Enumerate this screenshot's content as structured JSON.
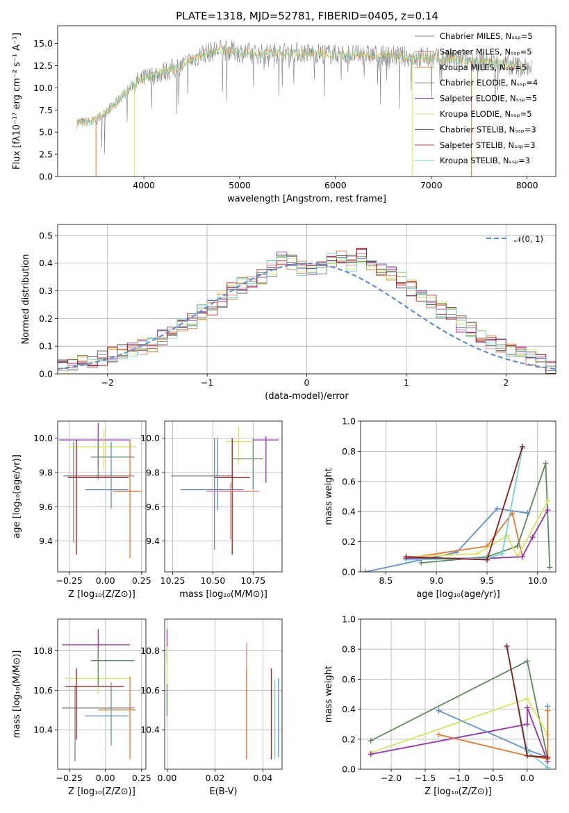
{
  "colors": {
    "Chabrier MILES": "#808080",
    "Salpeter MILES": "#f07c7c",
    "Kroupa MILES": "#e8772a",
    "Chabrier ELODIE": "#5a8a5a",
    "Salpeter ELODIE": "#9b30b8",
    "Kroupa ELODIE": "#d4e857",
    "Chabrier STELIB": "#555555",
    "Salpeter STELIB": "#b01818",
    "Kroupa STELIB": "#6fd4d4",
    "blue": "#5b8fd6",
    "darkred": "#8b1a1a"
  },
  "chart_data": [
    {
      "id": "spectrum",
      "type": "line",
      "title": "PLATE=1318, MJD=52781, FIBERID=0405, z=0.14",
      "xlabel": "wavelength [Angstrom, rest frame]",
      "ylabel": "Flux [fλ10⁻¹⁷ erg cm⁻² s⁻¹ A⁻¹]",
      "xlim": [
        3100,
        8300
      ],
      "ylim": [
        0,
        17
      ],
      "xticks": [
        "4000",
        "5000",
        "6000",
        "7000",
        "8000"
      ],
      "yticks": [
        "0.0",
        "2.5",
        "5.0",
        "7.5",
        "10.0",
        "12.5",
        "15.0"
      ],
      "legend": [
        "Chabrier MILES, Nₛₛₚ=5",
        "Salpeter MILES, Nₛₛₚ=5",
        "Kroupa MILES, Nₛₛₚ=5",
        "Chabrier ELODIE, Nₛₛₚ=4",
        "Salpeter ELODIE, Nₛₛₚ=5",
        "Kroupa ELODIE, Nₛₛₚ=5",
        "Chabrier STELIB, Nₛₛₚ=3",
        "Salpeter STELIB, Nₛₛₚ=3",
        "Kroupa STELIB, Nₛₛₚ=3"
      ],
      "legend_colors": [
        "#808080",
        "#f07c7c",
        "#e8772a",
        "#5a8a5a",
        "#9b30b8",
        "#d4e857",
        "#555555",
        "#b01818",
        "#6fd4d4"
      ],
      "legend_position": "right",
      "continuum": [
        [
          3300,
          6.0
        ],
        [
          3500,
          6.3
        ],
        [
          3700,
          8.2
        ],
        [
          3900,
          10.5
        ],
        [
          4000,
          11.0
        ],
        [
          4200,
          11.8
        ],
        [
          4400,
          12.5
        ],
        [
          4600,
          13.8
        ],
        [
          4800,
          14.3
        ],
        [
          5000,
          14.0
        ],
        [
          5200,
          13.8
        ],
        [
          5500,
          14.0
        ],
        [
          5800,
          13.9
        ],
        [
          6000,
          13.8
        ],
        [
          6300,
          13.7
        ],
        [
          6600,
          13.6
        ],
        [
          6900,
          13.4
        ],
        [
          7200,
          13.2
        ],
        [
          7500,
          13.0
        ],
        [
          7800,
          12.6
        ],
        [
          8050,
          12.2
        ]
      ]
    },
    {
      "id": "residuals",
      "type": "bar",
      "xlabel": "(data-model)/error",
      "ylabel": "Normed distribution",
      "xlim": [
        -2.5,
        2.5
      ],
      "ylim": [
        0,
        0.54
      ],
      "xticks": [
        "−2",
        "−1",
        "0",
        "1",
        "2"
      ],
      "yticks": [
        "0.0",
        "0.1",
        "0.2",
        "0.3",
        "0.4",
        "0.5"
      ],
      "legend": [
        "𝒩(0, 1)"
      ],
      "bin_edges_start": -2.5,
      "bin_width": 0.1,
      "values": [
        0.02,
        0.03,
        0.04,
        0.05,
        0.06,
        0.07,
        0.08,
        0.09,
        0.1,
        0.11,
        0.13,
        0.15,
        0.17,
        0.19,
        0.22,
        0.24,
        0.27,
        0.3,
        0.32,
        0.34,
        0.35,
        0.38,
        0.42,
        0.4,
        0.38,
        0.37,
        0.39,
        0.41,
        0.42,
        0.4,
        0.43,
        0.4,
        0.38,
        0.36,
        0.34,
        0.31,
        0.28,
        0.26,
        0.23,
        0.21,
        0.18,
        0.16,
        0.14,
        0.12,
        0.1,
        0.09,
        0.07,
        0.06,
        0.05,
        0.03
      ]
    },
    {
      "id": "age-Z",
      "type": "scatter",
      "xlabel": "Z [log₁₀(Z/Z⊙)]",
      "ylabel": "age  [log₁₀(age/yr)]",
      "xlim": [
        -0.33,
        0.28
      ],
      "ylim": [
        9.22,
        10.1
      ],
      "xticks": [
        "−0.25",
        "0.00",
        "0.25"
      ],
      "yticks": [
        "9.4",
        "9.6",
        "9.8",
        "10.0"
      ],
      "points": [
        {
          "x": -0.05,
          "y": 9.99,
          "xerr": [
            0.27,
            0.22
          ],
          "yerr": [
            0.15,
            0.1
          ],
          "c": "#9b30b8"
        },
        {
          "x": -0.01,
          "y": 9.95,
          "xerr": [
            0.25,
            0.22
          ],
          "yerr": [
            0.13,
            0.1
          ],
          "c": "#d4e857"
        },
        {
          "x": -0.22,
          "y": 9.78,
          "xerr": [
            0.07,
            0.42
          ],
          "yerr": [
            0.39,
            0.2
          ],
          "c": "#808080"
        },
        {
          "x": -0.2,
          "y": 9.77,
          "xerr": [
            0.06,
            0.36
          ],
          "yerr": [
            0.45,
            0.22
          ],
          "c": "#b01818"
        },
        {
          "x": 0.04,
          "y": 9.7,
          "xerr": [
            0.18,
            0.12
          ],
          "yerr": [
            0.11,
            0.28
          ],
          "c": "#5b8fd6"
        },
        {
          "x": 0.17,
          "y": 9.69,
          "xerr": [
            0.12,
            0.08
          ],
          "yerr": [
            0.39,
            0.3
          ],
          "c": "#e8772a"
        },
        {
          "x": -0.05,
          "y": 9.89,
          "xerr": [
            0.05,
            0.25
          ],
          "yerr": [
            0.13,
            0.12
          ],
          "c": "#5a8a5a"
        }
      ]
    },
    {
      "id": "age-mass",
      "type": "scatter",
      "xlabel": "mass [log₁₀(M/M⊙)]",
      "ylabel": "",
      "xlim": [
        10.2,
        10.93
      ],
      "ylim": [
        9.22,
        10.1
      ],
      "xticks": [
        "10.25",
        "10.50",
        "10.75"
      ],
      "yticks": [
        "9.4",
        "9.6",
        "9.8",
        "10.0"
      ],
      "points": [
        {
          "x": 10.83,
          "y": 9.99,
          "xerr": [
            0.08,
            0.08
          ],
          "yerr": [
            0.25,
            0.02
          ],
          "c": "#9b30b8"
        },
        {
          "x": 10.66,
          "y": 9.98,
          "xerr": [
            0.08,
            0.08
          ],
          "yerr": [
            0.13,
            0.09
          ],
          "c": "#d4e857"
        },
        {
          "x": 10.51,
          "y": 9.78,
          "xerr": [
            0.27,
            0.11
          ],
          "yerr": [
            0.43,
            0.22
          ],
          "c": "#808080"
        },
        {
          "x": 10.62,
          "y": 9.77,
          "xerr": [
            0.11,
            0.11
          ],
          "yerr": [
            0.45,
            0.23
          ],
          "c": "#b01818"
        },
        {
          "x": 10.53,
          "y": 9.7,
          "xerr": [
            0.23,
            0.16
          ],
          "yerr": [
            0.12,
            0.3
          ],
          "c": "#5b8fd6"
        },
        {
          "x": 10.61,
          "y": 9.69,
          "xerr": [
            0.15,
            0.18
          ],
          "yerr": [
            0.28,
            0.05
          ],
          "c": "#f07c7c"
        },
        {
          "x": 10.75,
          "y": 9.88,
          "xerr": [
            0.13,
            0.06
          ],
          "yerr": [
            0.18,
            0.12
          ],
          "c": "#5a8a5a"
        }
      ]
    },
    {
      "id": "weight-age",
      "type": "line",
      "xlabel": "age  [log₁₀(age/yr)]",
      "ylabel": "mass weight",
      "xlim": [
        8.25,
        10.18
      ],
      "ylim": [
        0,
        1
      ],
      "xticks": [
        "8.5",
        "9.0",
        "9.5",
        "10.0"
      ],
      "yticks": [
        "0.0",
        "0.2",
        "0.4",
        "0.6",
        "0.8",
        "1.0"
      ],
      "series": [
        {
          "c": "#5b8fd6",
          "pts": [
            [
              8.3,
              0.0
            ],
            [
              9.2,
              0.13
            ],
            [
              9.6,
              0.42
            ],
            [
              9.9,
              0.39
            ]
          ]
        },
        {
          "c": "#e8772a",
          "pts": [
            [
              8.7,
              0.09
            ],
            [
              9.5,
              0.17
            ],
            [
              9.75,
              0.39
            ],
            [
              9.85,
              0.1
            ]
          ]
        },
        {
          "c": "#5a8a5a",
          "pts": [
            [
              8.85,
              0.06
            ],
            [
              9.5,
              0.1
            ],
            [
              9.8,
              0.17
            ],
            [
              10.08,
              0.72
            ],
            [
              10.12,
              0.03
            ]
          ]
        },
        {
          "c": "#d4e857",
          "pts": [
            [
              8.7,
              0.1
            ],
            [
              9.4,
              0.12
            ],
            [
              9.7,
              0.24
            ],
            [
              9.8,
              0.1
            ],
            [
              10.1,
              0.47
            ]
          ]
        },
        {
          "c": "#9b30b8",
          "pts": [
            [
              8.7,
              0.09
            ],
            [
              9.5,
              0.09
            ],
            [
              9.85,
              0.1
            ],
            [
              9.95,
              0.23
            ],
            [
              10.1,
              0.41
            ]
          ]
        },
        {
          "c": "#6fd4d4",
          "pts": [
            [
              8.7,
              0.08
            ],
            [
              9.5,
              0.09
            ],
            [
              9.65,
              0.12
            ],
            [
              9.85,
              0.82
            ]
          ]
        },
        {
          "c": "#8b1a1a",
          "pts": [
            [
              8.7,
              0.1
            ],
            [
              9.5,
              0.08
            ],
            [
              9.85,
              0.83
            ]
          ]
        }
      ]
    },
    {
      "id": "mass-Z",
      "type": "scatter",
      "xlabel": "Z [log₁₀(Z/Z⊙)]",
      "ylabel": "mass [log₁₀(M/M⊙)]",
      "xlim": [
        -0.33,
        0.28
      ],
      "ylim": [
        10.2,
        10.96
      ],
      "xticks": [
        "−0.25",
        "0.00",
        "0.25"
      ],
      "yticks": [
        "10.4",
        "10.6",
        "10.8"
      ],
      "points": [
        {
          "x": -0.05,
          "y": 10.83,
          "xerr": [
            0.25,
            0.22
          ],
          "yerr": [
            0.08,
            0.08
          ],
          "c": "#9b30b8"
        },
        {
          "x": -0.05,
          "y": 10.66,
          "xerr": [
            0.23,
            0.23
          ],
          "yerr": [
            0.08,
            0.08
          ],
          "c": "#d4e857"
        },
        {
          "x": -0.21,
          "y": 10.51,
          "xerr": [
            0.09,
            0.41
          ],
          "yerr": [
            0.27,
            0.11
          ],
          "c": "#808080"
        },
        {
          "x": -0.2,
          "y": 10.62,
          "xerr": [
            0.08,
            0.33
          ],
          "yerr": [
            0.27,
            0.09
          ],
          "c": "#b01818"
        },
        {
          "x": 0.04,
          "y": 10.47,
          "xerr": [
            0.18,
            0.12
          ],
          "yerr": [
            0.15,
            0.17
          ],
          "c": "#5b8fd6"
        },
        {
          "x": 0.17,
          "y": 10.5,
          "xerr": [
            0.22,
            0.04
          ],
          "yerr": [
            0.25,
            0.17
          ],
          "c": "#e8772a"
        },
        {
          "x": -0.05,
          "y": 10.75,
          "xerr": [
            0.05,
            0.25
          ],
          "yerr": [
            0.13,
            0.06
          ],
          "c": "#5a8a5a"
        }
      ]
    },
    {
      "id": "mass-ebv",
      "type": "scatter",
      "xlabel": "E(B-V)",
      "ylabel": "",
      "xlim": [
        -0.001,
        0.048
      ],
      "ylim": [
        10.2,
        10.96
      ],
      "xticks": [
        "0.00",
        "0.02",
        "0.04"
      ],
      "yticks": [
        "10.4",
        "10.6",
        "10.8"
      ],
      "points": [
        {
          "x": 0.0,
          "y": 10.83,
          "xerr": [
            0,
            0
          ],
          "yerr": [
            0.08,
            0.08
          ],
          "c": "#9b30b8"
        },
        {
          "x": 0.0,
          "y": 10.66,
          "xerr": [
            0,
            0
          ],
          "yerr": [
            0.12,
            0.16
          ],
          "c": "#d4e857"
        },
        {
          "x": 0.0,
          "y": 10.55,
          "xerr": [
            0,
            0
          ],
          "yerr": [
            0.08,
            0.08
          ],
          "c": "#5a8a5a"
        },
        {
          "x": 0.0332,
          "y": 10.55,
          "xerr": [
            0,
            0
          ],
          "yerr": [
            0.3,
            0.29
          ],
          "c": "#f07c7c"
        },
        {
          "x": 0.0332,
          "y": 10.48,
          "xerr": [
            0,
            0
          ],
          "yerr": [
            0.23,
            0.23
          ],
          "c": "#e8772a"
        },
        {
          "x": 0.0435,
          "y": 10.48,
          "xerr": [
            0,
            0
          ],
          "yerr": [
            0.23,
            0.23
          ],
          "c": "#b01818"
        },
        {
          "x": 0.045,
          "y": 10.45,
          "xerr": [
            0,
            0
          ],
          "yerr": [
            0.2,
            0.2
          ],
          "c": "#6fd4d4"
        },
        {
          "x": 0.0465,
          "y": 10.42,
          "xerr": [
            0,
            0
          ],
          "yerr": [
            0.16,
            0.24
          ],
          "c": "#5b8fd6"
        }
      ]
    },
    {
      "id": "weight-Z",
      "type": "line",
      "xlabel": "Z [log₁₀(Z/Z⊙)]",
      "ylabel": "mass weight",
      "xlim": [
        -2.45,
        0.42
      ],
      "ylim": [
        0,
        1
      ],
      "xticks": [
        "−2.0",
        "−1.5",
        "−1.0",
        "−0.5",
        "0.0"
      ],
      "yticks": [
        "0.0",
        "0.2",
        "0.4",
        "0.6",
        "0.8",
        "1.0"
      ],
      "series": [
        {
          "c": "#5a8a5a",
          "pts": [
            [
              -2.3,
              0.19
            ],
            [
              0.0,
              0.72
            ],
            [
              0.3,
              0.07
            ]
          ]
        },
        {
          "c": "#d4e857",
          "pts": [
            [
              -2.3,
              0.11
            ],
            [
              0.0,
              0.47
            ],
            [
              0.3,
              0.23
            ],
            [
              0.3,
              0.05
            ]
          ]
        },
        {
          "c": "#9b30b8",
          "pts": [
            [
              -2.3,
              0.1
            ],
            [
              0.0,
              0.3
            ],
            [
              0.0,
              0.41
            ],
            [
              0.3,
              0.05
            ]
          ]
        },
        {
          "c": "#5b8fd6",
          "pts": [
            [
              -1.3,
              0.39
            ],
            [
              0.0,
              0.13
            ],
            [
              0.3,
              0.08
            ],
            [
              0.3,
              0.42
            ]
          ]
        },
        {
          "c": "#e8772a",
          "pts": [
            [
              -1.3,
              0.23
            ],
            [
              0.0,
              0.09
            ],
            [
              0.3,
              0.07
            ],
            [
              0.3,
              0.39
            ]
          ]
        },
        {
          "c": "#6fd4d4",
          "pts": [
            [
              -0.3,
              0.81
            ],
            [
              0.0,
              0.12
            ],
            [
              0.3,
              0.01
            ]
          ]
        },
        {
          "c": "#8b1a1a",
          "pts": [
            [
              -0.3,
              0.82
            ],
            [
              0.0,
              0.09
            ],
            [
              0.3,
              0.08
            ]
          ]
        }
      ]
    }
  ]
}
